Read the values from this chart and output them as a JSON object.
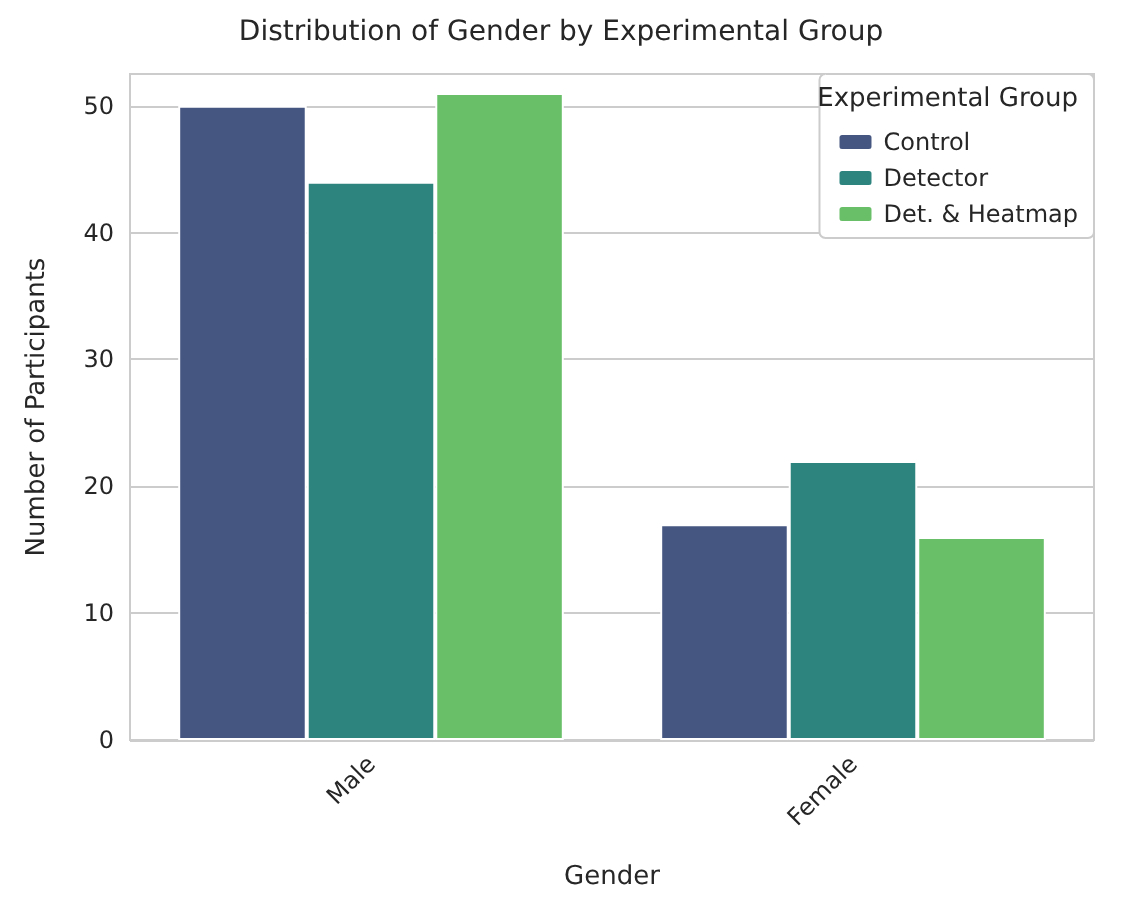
{
  "chart_data": {
    "type": "bar",
    "title": "Distribution of Gender by Experimental Group",
    "xlabel": "Gender",
    "ylabel": "Number of Participants",
    "legend_title": "Experimental Group",
    "categories": [
      "Male",
      "Female"
    ],
    "series": [
      {
        "name": "Control",
        "color": "#455681",
        "values": [
          50,
          17
        ]
      },
      {
        "name": "Detector",
        "color": "#2d837e",
        "values": [
          44,
          22
        ]
      },
      {
        "name": "Det. & Heatmap",
        "color": "#68bf68",
        "values": [
          51,
          16
        ]
      }
    ],
    "ylim": [
      0,
      52.5
    ],
    "yticks": [
      0,
      10,
      20,
      30,
      40,
      50
    ],
    "grid": "y",
    "legend": "top right"
  }
}
